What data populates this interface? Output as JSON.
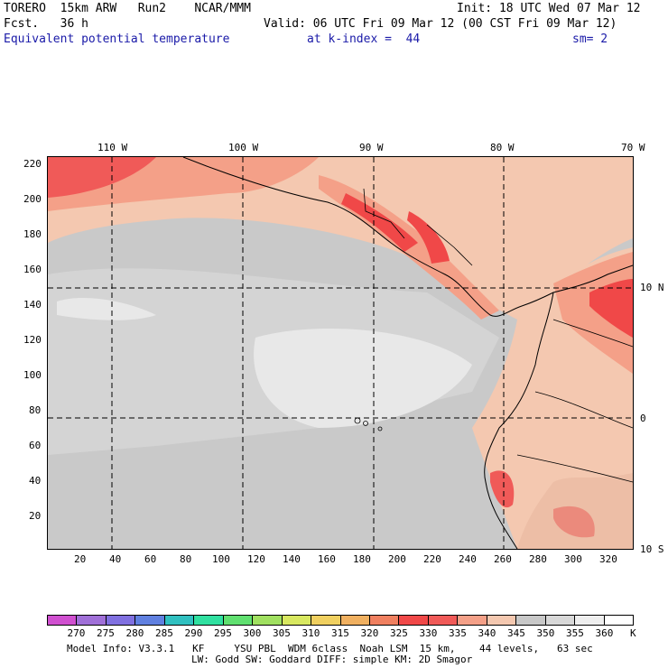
{
  "header": {
    "line1_left": "TORERO  15km ARW   Run2    NCAR/MMM",
    "line1_right": "Init: 18 UTC Wed 07 Mar 12",
    "line2_left": "Fcst.   36 h",
    "line2_right": "Valid: 06 UTC Fri 09 Mar 12 (00 CST Fri 09 Mar 12)",
    "line3_field": "Equivalent potential temperature",
    "line3_level": "at k-index =  44",
    "line3_smooth": "sm= 2"
  },
  "map": {
    "top_lon_labels": [
      "110 W",
      "100 W",
      "90 W",
      "80 W",
      "70 W"
    ],
    "right_lat_labels": [
      "10 N",
      "0",
      "10 S"
    ],
    "left_y_ticks": [
      "220",
      "200",
      "180",
      "160",
      "140",
      "120",
      "100",
      "80",
      "60",
      "40",
      "20"
    ],
    "bottom_x_ticks": [
      "20",
      "40",
      "60",
      "80",
      "100",
      "120",
      "140",
      "160",
      "180",
      "200",
      "220",
      "240",
      "260",
      "280",
      "300",
      "320"
    ]
  },
  "colorbar": {
    "labels": [
      "270",
      "275",
      "280",
      "285",
      "290",
      "295",
      "300",
      "305",
      "310",
      "315",
      "320",
      "325",
      "330",
      "335",
      "340",
      "345",
      "350",
      "355",
      "360"
    ],
    "unit": "K",
    "colors": [
      "#d050d0",
      "#a070d8",
      "#8070e0",
      "#6080e0",
      "#30c0c0",
      "#30e0a0",
      "#60e070",
      "#a0e060",
      "#d8e860",
      "#f0d060",
      "#f0b060",
      "#f08060",
      "#f04848",
      "#f05a58",
      "#f4a088",
      "#f4c8b0",
      "#c8c8c8",
      "#d8d8d8",
      "#eeeeee",
      "#ffffff"
    ]
  },
  "footer": {
    "line1": "Model Info: V3.3.1   KF     YSU PBL  WDM 6class  Noah LSM  15 km,    44 levels,   63 sec",
    "line2": "LW: Godd SW: Goddard DIFF: simple KM: 2D Smagor"
  }
}
